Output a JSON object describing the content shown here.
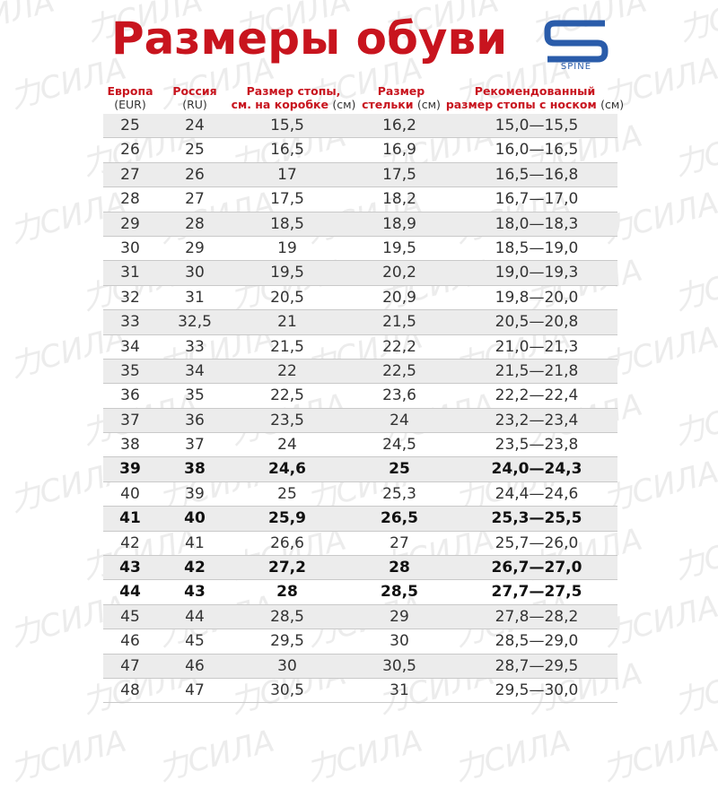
{
  "title": "Размеры обуви",
  "watermark": "力СИЛА",
  "logo": {
    "text": "SPINE",
    "color": "#2a5caa"
  },
  "accent_color": "#c8141e",
  "headers": [
    {
      "line1": "Европа",
      "line2": "(EUR)",
      "unit": ""
    },
    {
      "line1": "Россия",
      "line2": "(RU)",
      "unit": ""
    },
    {
      "line1": "Размер стопы,",
      "line2": "см. на коробке",
      "unit": "(см)"
    },
    {
      "line1": "Размер",
      "line2": "стельки",
      "unit": "(см)"
    },
    {
      "line1": "Рекомендованный",
      "line2": "размер стопы с носком",
      "unit": "(см)"
    }
  ],
  "rows": [
    {
      "eur": "25",
      "ru": "24",
      "box": "15,5",
      "insole": "16,2",
      "rec": "15,0—15,5",
      "bold": false
    },
    {
      "eur": "26",
      "ru": "25",
      "box": "16,5",
      "insole": "16,9",
      "rec": "16,0—16,5",
      "bold": false
    },
    {
      "eur": "27",
      "ru": "26",
      "box": "17",
      "insole": "17,5",
      "rec": "16,5—16,8",
      "bold": false
    },
    {
      "eur": "28",
      "ru": "27",
      "box": "17,5",
      "insole": "18,2",
      "rec": "16,7—17,0",
      "bold": false
    },
    {
      "eur": "29",
      "ru": "28",
      "box": "18,5",
      "insole": "18,9",
      "rec": "18,0—18,3",
      "bold": false
    },
    {
      "eur": "30",
      "ru": "29",
      "box": "19",
      "insole": "19,5",
      "rec": "18,5—19,0",
      "bold": false
    },
    {
      "eur": "31",
      "ru": "30",
      "box": "19,5",
      "insole": "20,2",
      "rec": "19,0—19,3",
      "bold": false
    },
    {
      "eur": "32",
      "ru": "31",
      "box": "20,5",
      "insole": "20,9",
      "rec": "19,8—20,0",
      "bold": false
    },
    {
      "eur": "33",
      "ru": "32,5",
      "box": "21",
      "insole": "21,5",
      "rec": "20,5—20,8",
      "bold": false
    },
    {
      "eur": "34",
      "ru": "33",
      "box": "21,5",
      "insole": "22,2",
      "rec": "21,0—21,3",
      "bold": false
    },
    {
      "eur": "35",
      "ru": "34",
      "box": "22",
      "insole": "22,5",
      "rec": "21,5—21,8",
      "bold": false
    },
    {
      "eur": "36",
      "ru": "35",
      "box": "22,5",
      "insole": "23,6",
      "rec": "22,2—22,4",
      "bold": false
    },
    {
      "eur": "37",
      "ru": "36",
      "box": "23,5",
      "insole": "24",
      "rec": "23,2—23,4",
      "bold": false
    },
    {
      "eur": "38",
      "ru": "37",
      "box": "24",
      "insole": "24,5",
      "rec": "23,5—23,8",
      "bold": false
    },
    {
      "eur": "39",
      "ru": "38",
      "box": "24,6",
      "insole": "25",
      "rec": "24,0—24,3",
      "bold": true
    },
    {
      "eur": "40",
      "ru": "39",
      "box": "25",
      "insole": "25,3",
      "rec": "24,4—24,6",
      "bold": false
    },
    {
      "eur": "41",
      "ru": "40",
      "box": "25,9",
      "insole": "26,5",
      "rec": "25,3—25,5",
      "bold": true
    },
    {
      "eur": "42",
      "ru": "41",
      "box": "26,6",
      "insole": "27",
      "rec": "25,7—26,0",
      "bold": false
    },
    {
      "eur": "43",
      "ru": "42",
      "box": "27,2",
      "insole": "28",
      "rec": "26,7—27,0",
      "bold": true
    },
    {
      "eur": "44",
      "ru": "43",
      "box": "28",
      "insole": "28,5",
      "rec": "27,7—27,5",
      "bold": true
    },
    {
      "eur": "45",
      "ru": "44",
      "box": "28,5",
      "insole": "29",
      "rec": "27,8—28,2",
      "bold": false
    },
    {
      "eur": "46",
      "ru": "45",
      "box": "29,5",
      "insole": "30",
      "rec": "28,5—29,0",
      "bold": false
    },
    {
      "eur": "47",
      "ru": "46",
      "box": "30",
      "insole": "30,5",
      "rec": "28,7—29,5",
      "bold": false
    },
    {
      "eur": "48",
      "ru": "47",
      "box": "30,5",
      "insole": "31",
      "rec": "29,5—30,0",
      "bold": false
    }
  ]
}
